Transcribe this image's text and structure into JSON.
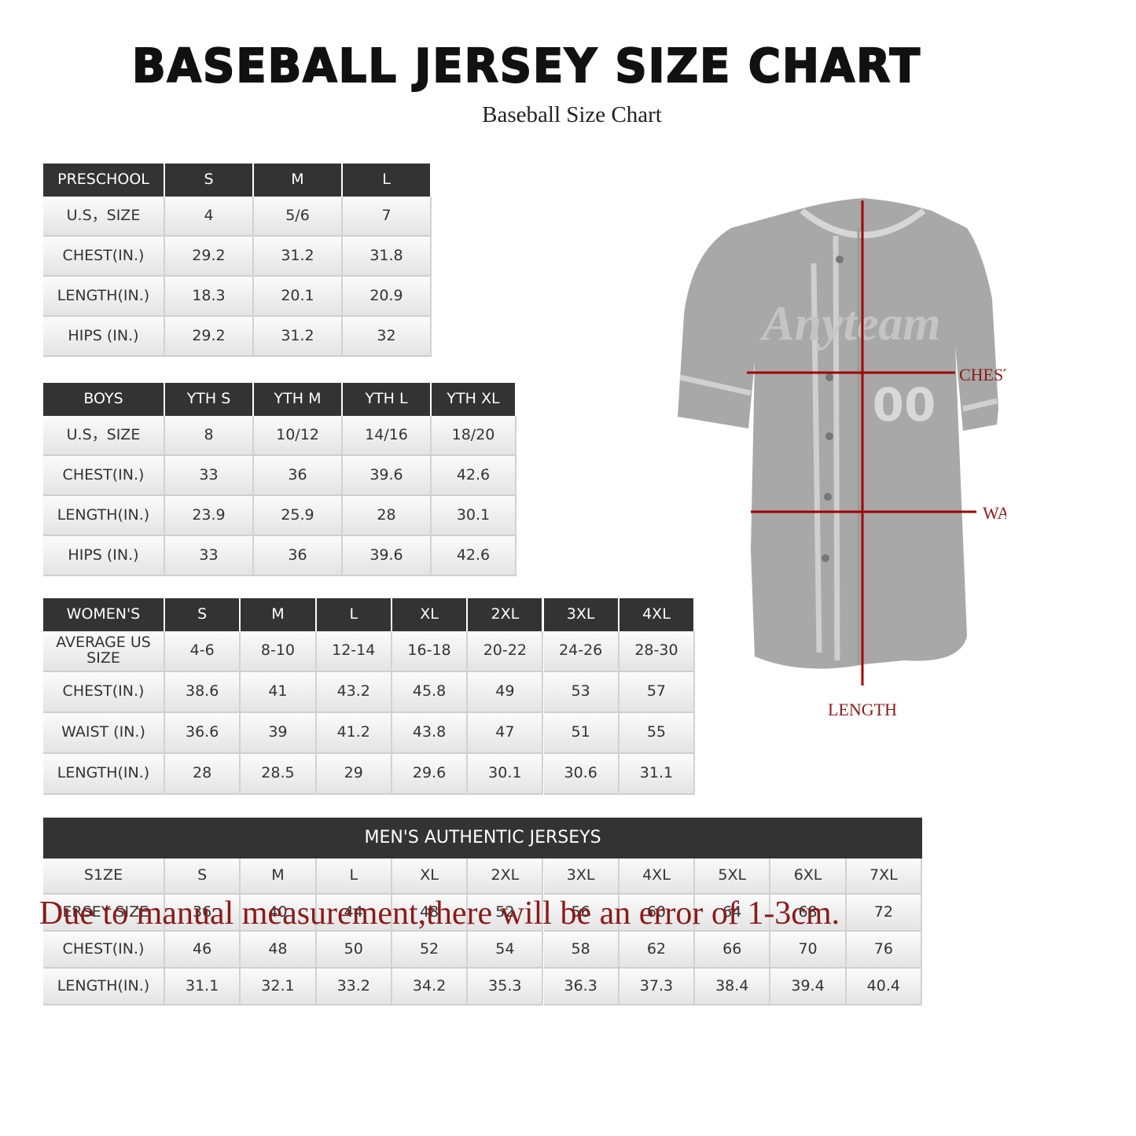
{
  "header": {
    "title": "BASEBALL JERSEY SIZE CHART",
    "subtitle": "Baseball Size Chart"
  },
  "tables": [
    {
      "header": [
        "PRESCHOOL",
        "S",
        "M",
        "L"
      ],
      "rows": [
        [
          "U.S，SIZE",
          "4",
          "5/6",
          "7"
        ],
        [
          "CHEST(IN.)",
          "29.2",
          "31.2",
          "31.8"
        ],
        [
          "LENGTH(IN.)",
          "18.3",
          "20.1",
          "20.9"
        ],
        [
          "HIPS (IN.)",
          "29.2",
          "31.2",
          "32"
        ]
      ]
    },
    {
      "header": [
        "BOYS",
        "YTH S",
        "YTH M",
        "YTH L",
        "YTH XL"
      ],
      "rows": [
        [
          "U.S，SIZE",
          "8",
          "10/12",
          "14/16",
          "18/20"
        ],
        [
          "CHEST(IN.)",
          "33",
          "36",
          "39.6",
          "42.6"
        ],
        [
          "LENGTH(IN.)",
          "23.9",
          "25.9",
          "28",
          "30.1"
        ],
        [
          "HIPS (IN.)",
          "33",
          "36",
          "39.6",
          "42.6"
        ]
      ]
    },
    {
      "header": [
        "WOMEN'S",
        "S",
        "M",
        "L",
        "XL",
        "2XL",
        "3XL",
        "4XL"
      ],
      "rows": [
        [
          "AVERAGE US SIZE",
          "4-6",
          "8-10",
          "12-14",
          "16-18",
          "20-22",
          "24-26",
          "28-30"
        ],
        [
          "CHEST(IN.)",
          "38.6",
          "41",
          "43.2",
          "45.8",
          "49",
          "53",
          "57"
        ],
        [
          "WAIST (IN.)",
          "36.6",
          "39",
          "41.2",
          "43.8",
          "47",
          "51",
          "55"
        ],
        [
          "LENGTH(IN.)",
          "28",
          "28.5",
          "29",
          "29.6",
          "30.1",
          "30.6",
          "31.1"
        ]
      ]
    },
    {
      "caption": "MEN'S AUTHENTIC JERSEYS",
      "header": [
        "S1ZE",
        "S",
        "M",
        "L",
        "XL",
        "2XL",
        "3XL",
        "4XL",
        "5XL",
        "6XL",
        "7XL"
      ],
      "rows": [
        [
          "JERSEY SIZE",
          "36",
          "40",
          "44",
          "48",
          "52",
          "56",
          "60",
          "64",
          "68",
          "72"
        ],
        [
          "CHEST(IN.)",
          "46",
          "48",
          "50",
          "52",
          "54",
          "58",
          "62",
          "66",
          "70",
          "76"
        ],
        [
          "LENGTH(IN.)",
          "31.1",
          "32.1",
          "33.2",
          "34.2",
          "35.3",
          "36.3",
          "37.3",
          "38.4",
          "39.4",
          "40.4"
        ]
      ]
    }
  ],
  "diagram": {
    "team": "Anyteam",
    "number": "00",
    "chest": "CHEST",
    "waist": "WAIST",
    "length": "LENGTH"
  },
  "note": "Due to manual measurement,there will be an error of 1-3cm."
}
